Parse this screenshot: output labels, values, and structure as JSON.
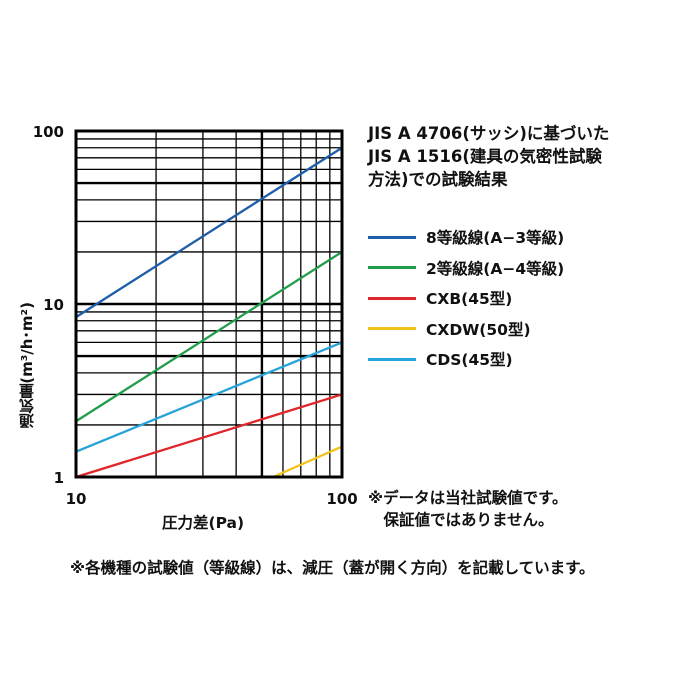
{
  "note": {
    "title": "JIS A 4706(サッシ)に基づいた\nJIS A 1516(建具の気密性試験\n方法)での試験結果",
    "test_note": "※データは当社試験値です。\n　保証値ではありません。",
    "footnote": "※各機種の試験値（等級線）は、減圧（蓋が開く方向）を記載しています。"
  },
  "chart_data": {
    "type": "line",
    "title": "",
    "xlabel": "圧力差(Pa)",
    "ylabel": "通気量(m³/h･m²)",
    "xscale": "log",
    "yscale": "log",
    "xlim": [
      10,
      100
    ],
    "ylim": [
      1,
      100
    ],
    "x_ticks": [
      "10",
      "100"
    ],
    "y_ticks": [
      "1",
      "10",
      "100"
    ],
    "grid": true,
    "legend_position": "right",
    "series": [
      {
        "name": "8等級線(A−3等級)",
        "color": "#1f5ea8",
        "points": [
          [
            10,
            8.4
          ],
          [
            100,
            80
          ]
        ]
      },
      {
        "name": "2等級線(A−4等級)",
        "color": "#1f9d4a",
        "points": [
          [
            10,
            2.1
          ],
          [
            100,
            20
          ]
        ]
      },
      {
        "name": "CXB(45型)",
        "color": "#e0262a",
        "points": [
          [
            10,
            1.0
          ],
          [
            100,
            3.0
          ]
        ]
      },
      {
        "name": "CXDW(50型)",
        "color": "#f2c21b",
        "points": [
          [
            55,
            1.0
          ],
          [
            100,
            1.5
          ]
        ]
      },
      {
        "name": "CDS(45型)",
        "color": "#27a3d9",
        "points": [
          [
            10,
            1.4
          ],
          [
            100,
            6.0
          ]
        ]
      }
    ]
  }
}
